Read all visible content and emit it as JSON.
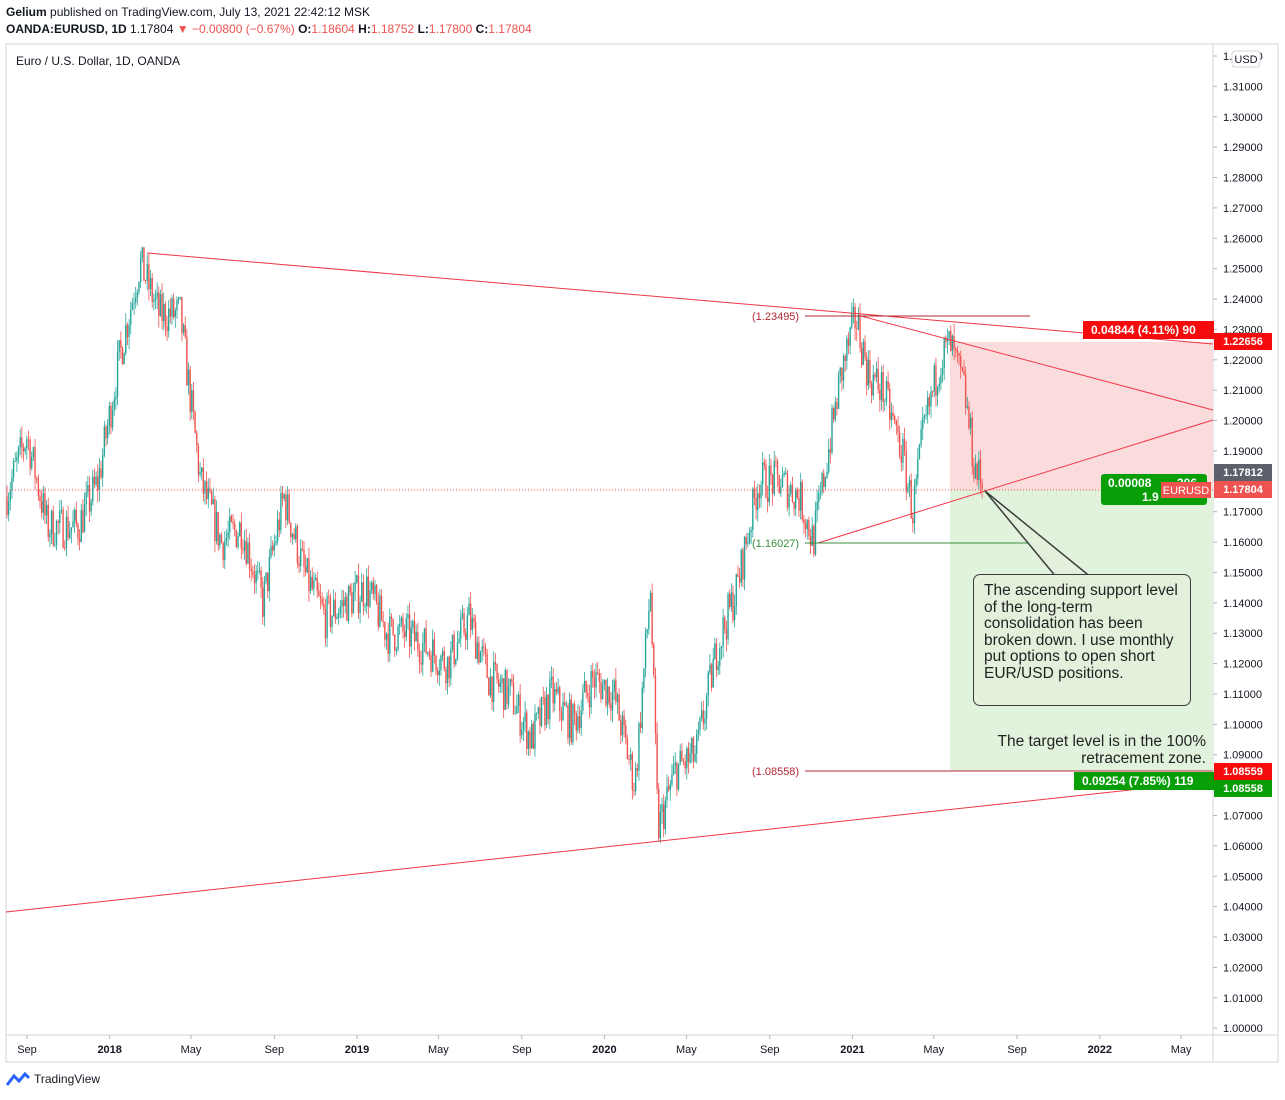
{
  "header": {
    "author": "Gelium",
    "published_text": "published on TradingView.com, July 13, 2021 22:42:12 MSK",
    "symbol": "OANDA:EURUSD, 1D",
    "last": "1.17804",
    "change": "▼ −0.00800 (−0.67%)",
    "o_label": "O:",
    "o_value": "1.18604",
    "h_label": "H:",
    "h_value": "1.18752",
    "l_label": "L:",
    "l_value": "1.17800",
    "c_label": "C:",
    "c_value": "1.17804"
  },
  "chart_title": "Euro / U.S. Dollar, 1D, OANDA",
  "currency_badge": "USD",
  "price_badges": {
    "top_measure": "0.04844 (4.11%) 90",
    "top_level": "1.22656",
    "prev_close": "1.17812",
    "symbol_tag": "EURUSD",
    "last_price": "1.17804",
    "mid_measure_line1": "0.00008",
    "mid_measure_line1_suffix": "306",
    "mid_measure_line2": "1.9",
    "bottom_level": "1.08559",
    "bottom_measure": "0.09254 (7.85%) 119",
    "bottom_price": "1.08558"
  },
  "level_labels": {
    "high": "(1.23495)",
    "low": "(1.16027)",
    "target": "(1.08558)"
  },
  "annotations": {
    "note": "The ascending support level of the long-term consolidation has been broken down. I use monthly put options to open short EUR/USD positions.",
    "target": "The target level is in the 100% retracement zone."
  },
  "footer": {
    "brand": "TradingView"
  },
  "colors": {
    "up": "#26a69a",
    "down": "#ef5350",
    "trendline": "#f23645",
    "short_zone": "#fbdcdc",
    "target_zone": "#e2f3dd",
    "green_badge": "#089e08",
    "red_badge": "#f50b0b"
  },
  "chart_data": {
    "type": "candlestick",
    "title": "Euro / U.S. Dollar, 1D, OANDA",
    "y_axis": {
      "min": 1.0,
      "max": 1.32,
      "step": 0.01,
      "tick_labels": [
        "1.00000",
        "1.01000",
        "1.02000",
        "1.03000",
        "1.04000",
        "1.05000",
        "1.06000",
        "1.07000",
        "1.08000",
        "1.09000",
        "1.10000",
        "1.11000",
        "1.12000",
        "1.13000",
        "1.14000",
        "1.15000",
        "1.16000",
        "1.17000",
        "1.18000",
        "1.19000",
        "1.20000",
        "1.21000",
        "1.22000",
        "1.23000",
        "1.24000",
        "1.25000",
        "1.26000",
        "1.27000",
        "1.28000",
        "1.29000",
        "1.30000",
        "1.31000",
        "1.32000"
      ]
    },
    "x_axis": {
      "tick_labels": [
        "Sep",
        "2018",
        "May",
        "Sep",
        "2019",
        "May",
        "Sep",
        "2020",
        "May",
        "Sep",
        "2021",
        "May",
        "Sep",
        "2022",
        "May"
      ],
      "bold_labels": [
        "2018",
        "2019",
        "2020",
        "2021",
        "2022"
      ],
      "range": [
        "2017-08",
        "2022-06"
      ]
    },
    "price_path": [
      [
        "2017-08-01",
        1.175
      ],
      [
        "2017-09-01",
        1.195
      ],
      [
        "2017-10-01",
        1.165
      ],
      [
        "2017-11-15",
        1.165
      ],
      [
        "2017-12-15",
        1.18
      ],
      [
        "2018-01-15",
        1.22
      ],
      [
        "2018-02-15",
        1.252
      ],
      [
        "2018-03-15",
        1.235
      ],
      [
        "2018-04-15",
        1.235
      ],
      [
        "2018-05-15",
        1.18
      ],
      [
        "2018-06-15",
        1.16
      ],
      [
        "2018-07-15",
        1.165
      ],
      [
        "2018-08-15",
        1.14
      ],
      [
        "2018-09-15",
        1.175
      ],
      [
        "2018-10-15",
        1.15
      ],
      [
        "2018-11-15",
        1.135
      ],
      [
        "2018-12-15",
        1.14
      ],
      [
        "2019-01-15",
        1.145
      ],
      [
        "2019-02-15",
        1.13
      ],
      [
        "2019-03-15",
        1.13
      ],
      [
        "2019-04-15",
        1.125
      ],
      [
        "2019-05-15",
        1.12
      ],
      [
        "2019-06-15",
        1.135
      ],
      [
        "2019-07-15",
        1.115
      ],
      [
        "2019-08-15",
        1.11
      ],
      [
        "2019-09-15",
        1.095
      ],
      [
        "2019-10-15",
        1.11
      ],
      [
        "2019-11-15",
        1.1
      ],
      [
        "2019-12-15",
        1.115
      ],
      [
        "2020-01-15",
        1.11
      ],
      [
        "2020-02-15",
        1.08
      ],
      [
        "2020-03-09",
        1.145
      ],
      [
        "2020-03-20",
        1.065
      ],
      [
        "2020-04-15",
        1.085
      ],
      [
        "2020-05-15",
        1.09
      ],
      [
        "2020-06-15",
        1.125
      ],
      [
        "2020-07-15",
        1.145
      ],
      [
        "2020-08-15",
        1.18
      ],
      [
        "2020-09-15",
        1.18
      ],
      [
        "2020-10-15",
        1.175
      ],
      [
        "2020-11-04",
        1.16
      ],
      [
        "2020-12-15",
        1.215
      ],
      [
        "2021-01-06",
        1.234
      ],
      [
        "2021-01-25",
        1.215
      ],
      [
        "2021-02-15",
        1.21
      ],
      [
        "2021-03-15",
        1.19
      ],
      [
        "2021-03-31",
        1.17
      ],
      [
        "2021-04-15",
        1.195
      ],
      [
        "2021-05-10",
        1.22
      ],
      [
        "2021-05-25",
        1.225
      ],
      [
        "2021-06-15",
        1.21
      ],
      [
        "2021-06-30",
        1.185
      ],
      [
        "2021-07-13",
        1.178
      ]
    ],
    "series": [
      {
        "name": "EURUSD",
        "last": 1.17804,
        "open": 1.18604,
        "high": 1.18752,
        "low": 1.178,
        "close": 1.17804
      }
    ],
    "levels": {
      "high": 1.23495,
      "low": 1.16027,
      "target": 1.08558,
      "zone_top": 1.22656,
      "zone_bottom": 1.08558
    }
  }
}
